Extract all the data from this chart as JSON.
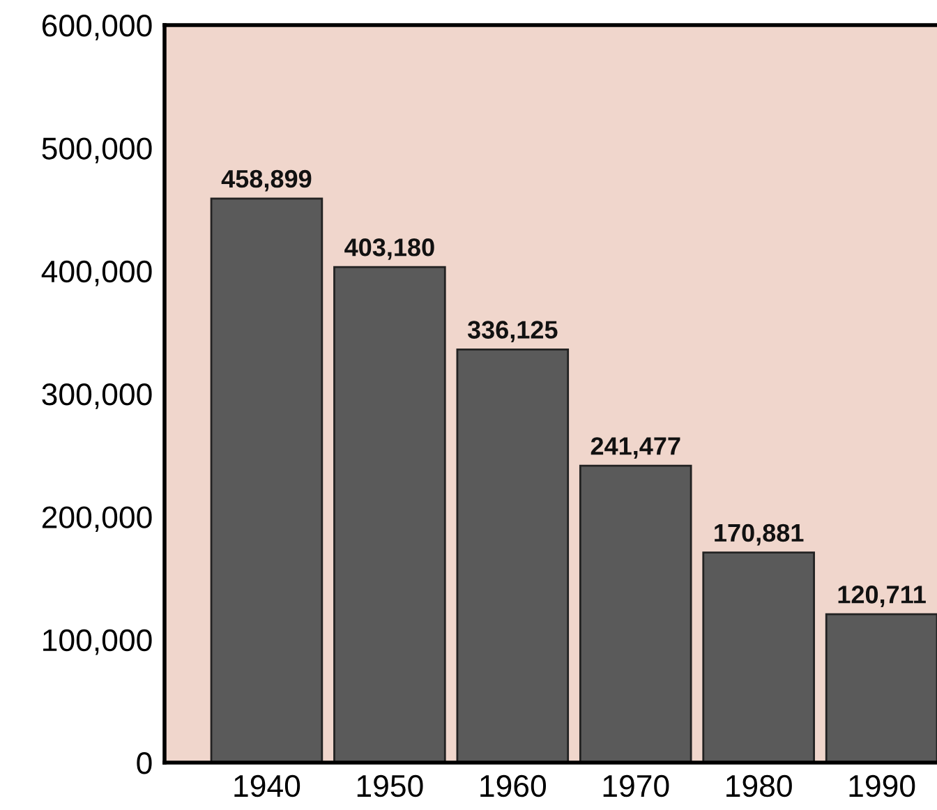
{
  "chart_data": {
    "type": "bar",
    "categories": [
      "1940",
      "1950",
      "1960",
      "1970",
      "1980",
      "1990"
    ],
    "values": [
      458899,
      403180,
      336125,
      241477,
      170881,
      120711
    ],
    "value_labels": [
      "458,899",
      "403,180",
      "336,125",
      "241,477",
      "170,881",
      "120,711"
    ],
    "color": "#5a5a5a",
    "ylim": [
      0,
      600000
    ],
    "yticks": [
      {
        "value": 0,
        "label": "0"
      },
      {
        "value": 100000,
        "label": "100,000"
      },
      {
        "value": 200000,
        "label": "200,000"
      },
      {
        "value": 300000,
        "label": "300,000"
      },
      {
        "value": 400000,
        "label": "400,000"
      },
      {
        "value": 500000,
        "label": "500,000"
      },
      {
        "value": 600000,
        "label": "600,000"
      }
    ],
    "grid": false,
    "legend": false
  }
}
